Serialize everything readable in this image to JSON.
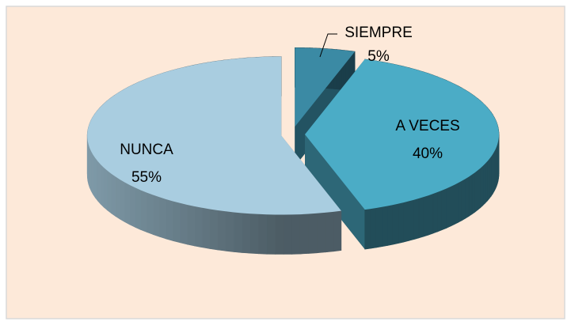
{
  "chart_data": {
    "type": "pie3d",
    "categories": [
      "SIEMPRE",
      "A VECES",
      "NUNCA"
    ],
    "values": [
      5,
      40,
      55
    ],
    "value_labels": [
      "5%",
      "40%",
      "55%"
    ],
    "colors": [
      "#3b8aa4",
      "#4bacc6",
      "#a9cde0"
    ]
  }
}
